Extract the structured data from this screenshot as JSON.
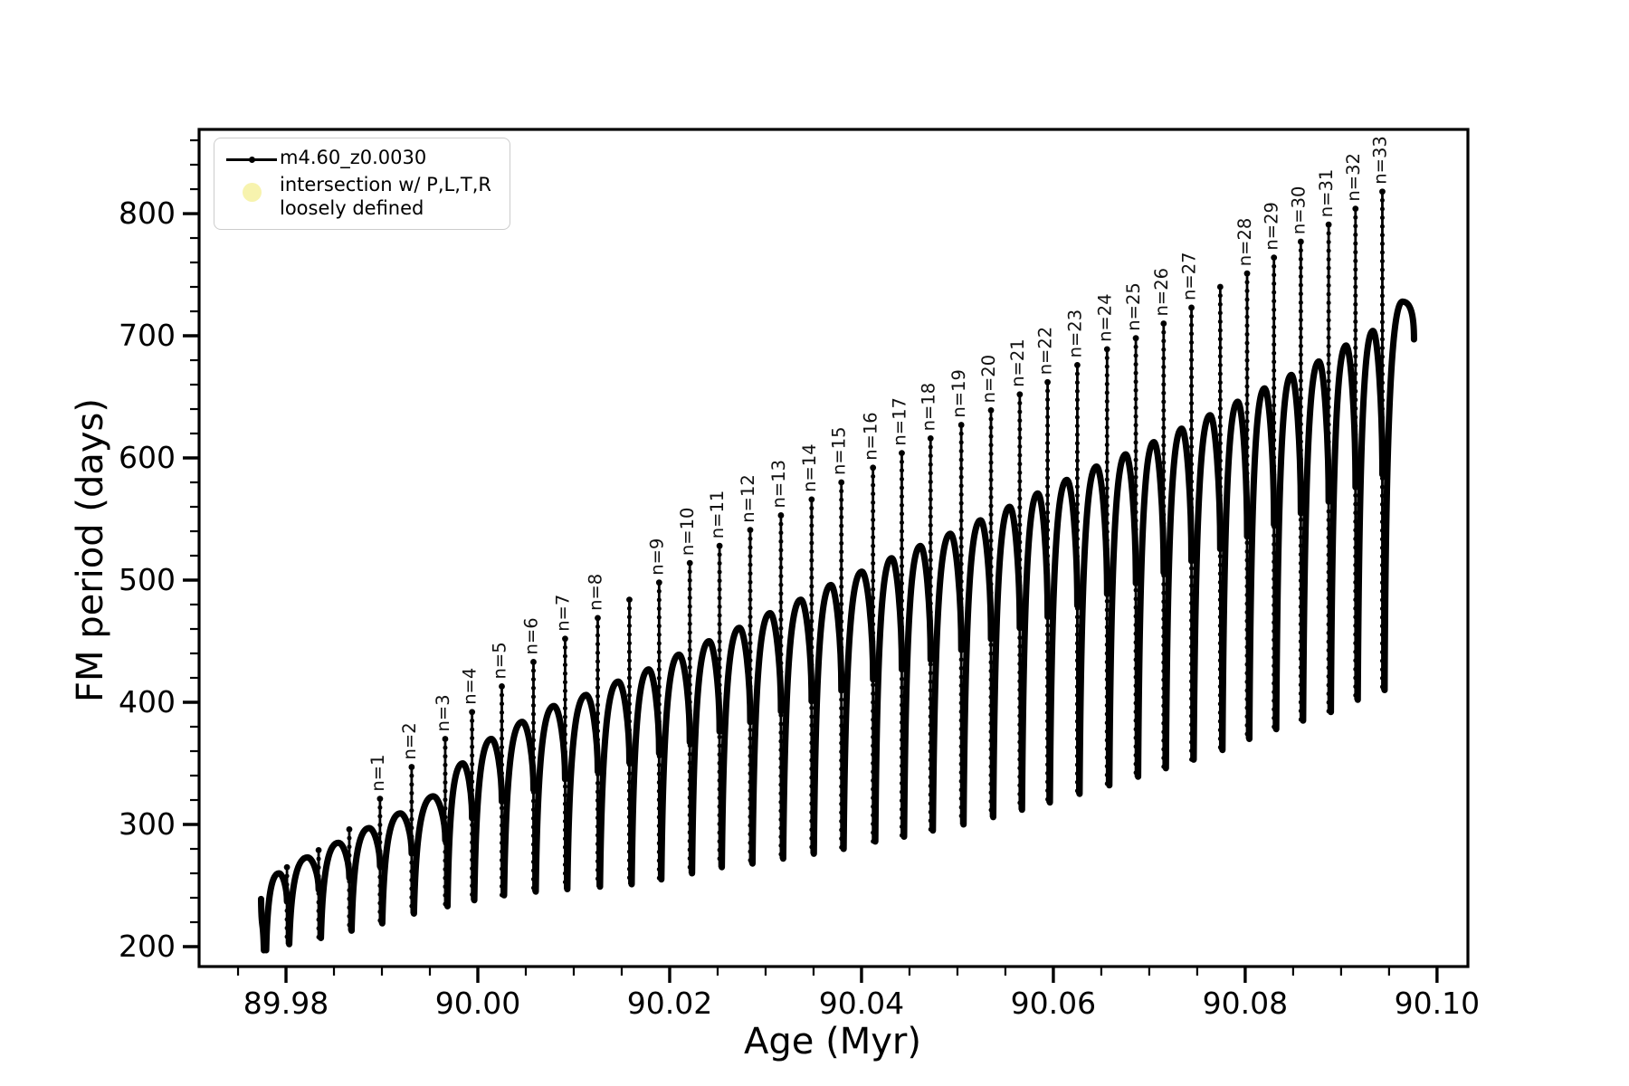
{
  "figure": {
    "background": "#ffffff",
    "line_color": "#000000"
  },
  "legend": {
    "series_label": "m4.60_z0.0030",
    "marker_label_line1": "intersection w/ P,L,T,R",
    "marker_label_line2": "loosely defined",
    "marker_color": "#f7f3ae",
    "border_color": "#cccccc"
  },
  "chart_data": {
    "type": "line",
    "title": "",
    "xlabel": "Age (Myr)",
    "ylabel": "FM period (days)",
    "xlim": [
      89.97094,
      90.10322
    ],
    "ylim": [
      183.7,
      868.9
    ],
    "grid": false,
    "legend_position": "upper-left",
    "x_major_ticks": [
      89.98,
      90.0,
      90.02,
      90.04,
      90.06,
      90.08,
      90.1
    ],
    "x_major_labels": [
      "89.98",
      "90.00",
      "90.02",
      "90.04",
      "90.06",
      "90.08",
      "90.10"
    ],
    "x_minor_step": 0.005,
    "y_major_ticks": [
      200,
      300,
      400,
      500,
      600,
      700,
      800
    ],
    "y_major_labels": [
      "200",
      "300",
      "400",
      "500",
      "600",
      "700",
      "800"
    ],
    "y_minor_step": 20,
    "series": [
      {
        "name": "m4.60_z0.0030",
        "color": "#000000",
        "style": "line+point-markers"
      },
      {
        "name": "intersection w/ P,L,T,R loosely defined",
        "color": "#f7f3ae",
        "style": "circle-marker"
      }
    ],
    "start_point": {
      "age": 89.9774,
      "value": 239,
      "dip_age": 89.9776,
      "dip": 197
    },
    "cycles": [
      {
        "age": 89.9801,
        "top": 265,
        "peak": 260,
        "dip": 202,
        "label": null
      },
      {
        "age": 89.9834,
        "top": 279,
        "peak": 273,
        "dip": 207,
        "label": null
      },
      {
        "age": 89.9866,
        "top": 296,
        "peak": 285,
        "dip": 213,
        "label": null
      },
      {
        "age": 89.9898,
        "top": 321,
        "peak": 297,
        "dip": 219,
        "label": "n=1"
      },
      {
        "age": 89.9931,
        "top": 347,
        "peak": 309,
        "dip": 227,
        "label": "n=2"
      },
      {
        "age": 89.9966,
        "top": 370,
        "peak": 323,
        "dip": 233,
        "label": "n=3"
      },
      {
        "age": 89.9994,
        "top": 392,
        "peak": 350,
        "dip": 238,
        "label": "n=4"
      },
      {
        "age": 90.0025,
        "top": 413,
        "peak": 370,
        "dip": 242,
        "label": "n=5"
      },
      {
        "age": 90.0058,
        "top": 433,
        "peak": 384,
        "dip": 245,
        "label": "n=6"
      },
      {
        "age": 90.0091,
        "top": 452,
        "peak": 397,
        "dip": 247,
        "label": "n=7"
      },
      {
        "age": 90.0125,
        "top": 469,
        "peak": 406,
        "dip": 249,
        "label": "n=8"
      },
      {
        "age": 90.0158,
        "top": 484,
        "peak": 417,
        "dip": 251,
        "label": null
      },
      {
        "age": 90.0189,
        "top": 498,
        "peak": 427,
        "dip": 255,
        "label": "n=9"
      },
      {
        "age": 90.0221,
        "top": 514,
        "peak": 439,
        "dip": 260,
        "label": "n=10"
      },
      {
        "age": 90.0252,
        "top": 528,
        "peak": 450,
        "dip": 265,
        "label": "n=11"
      },
      {
        "age": 90.0284,
        "top": 541,
        "peak": 461,
        "dip": 268,
        "label": "n=12"
      },
      {
        "age": 90.0316,
        "top": 553,
        "peak": 473,
        "dip": 272,
        "label": "n=13"
      },
      {
        "age": 90.0348,
        "top": 566,
        "peak": 484,
        "dip": 276,
        "label": "n=14"
      },
      {
        "age": 90.0379,
        "top": 580,
        "peak": 496,
        "dip": 280,
        "label": "n=15"
      },
      {
        "age": 90.0412,
        "top": 592,
        "peak": 507,
        "dip": 286,
        "label": "n=16"
      },
      {
        "age": 90.0442,
        "top": 604,
        "peak": 518,
        "dip": 290,
        "label": "n=17"
      },
      {
        "age": 90.0472,
        "top": 616,
        "peak": 528,
        "dip": 295,
        "label": "n=18"
      },
      {
        "age": 90.0504,
        "top": 627,
        "peak": 538,
        "dip": 300,
        "label": "n=19"
      },
      {
        "age": 90.0535,
        "top": 639,
        "peak": 549,
        "dip": 306,
        "label": "n=20"
      },
      {
        "age": 90.0565,
        "top": 652,
        "peak": 560,
        "dip": 312,
        "label": "n=21"
      },
      {
        "age": 90.0594,
        "top": 662,
        "peak": 571,
        "dip": 318,
        "label": "n=22"
      },
      {
        "age": 90.0625,
        "top": 676,
        "peak": 582,
        "dip": 325,
        "label": "n=23"
      },
      {
        "age": 90.0656,
        "top": 689,
        "peak": 593,
        "dip": 332,
        "label": "n=24"
      },
      {
        "age": 90.0686,
        "top": 698,
        "peak": 603,
        "dip": 339,
        "label": "n=25"
      },
      {
        "age": 90.0715,
        "top": 710,
        "peak": 613,
        "dip": 346,
        "label": "n=26"
      },
      {
        "age": 90.0744,
        "top": 723,
        "peak": 624,
        "dip": 353,
        "label": "n=27"
      },
      {
        "age": 90.0774,
        "top": 740,
        "peak": 635,
        "dip": 361,
        "label": null
      },
      {
        "age": 90.0802,
        "top": 751,
        "peak": 646,
        "dip": 370,
        "label": "n=28"
      },
      {
        "age": 90.083,
        "top": 764,
        "peak": 657,
        "dip": 378,
        "label": "n=29"
      },
      {
        "age": 90.0858,
        "top": 777,
        "peak": 668,
        "dip": 385,
        "label": "n=30"
      },
      {
        "age": 90.0887,
        "top": 791,
        "peak": 679,
        "dip": 392,
        "label": "n=31"
      },
      {
        "age": 90.0915,
        "top": 804,
        "peak": 692,
        "dip": 402,
        "label": "n=32"
      },
      {
        "age": 90.0943,
        "top": 818,
        "peak": 704,
        "dip": 410,
        "label": "n=33"
      }
    ],
    "final_arc": {
      "peak_age": 90.0964,
      "peak": 728,
      "end_age": 90.0976,
      "end_value": 697
    }
  }
}
